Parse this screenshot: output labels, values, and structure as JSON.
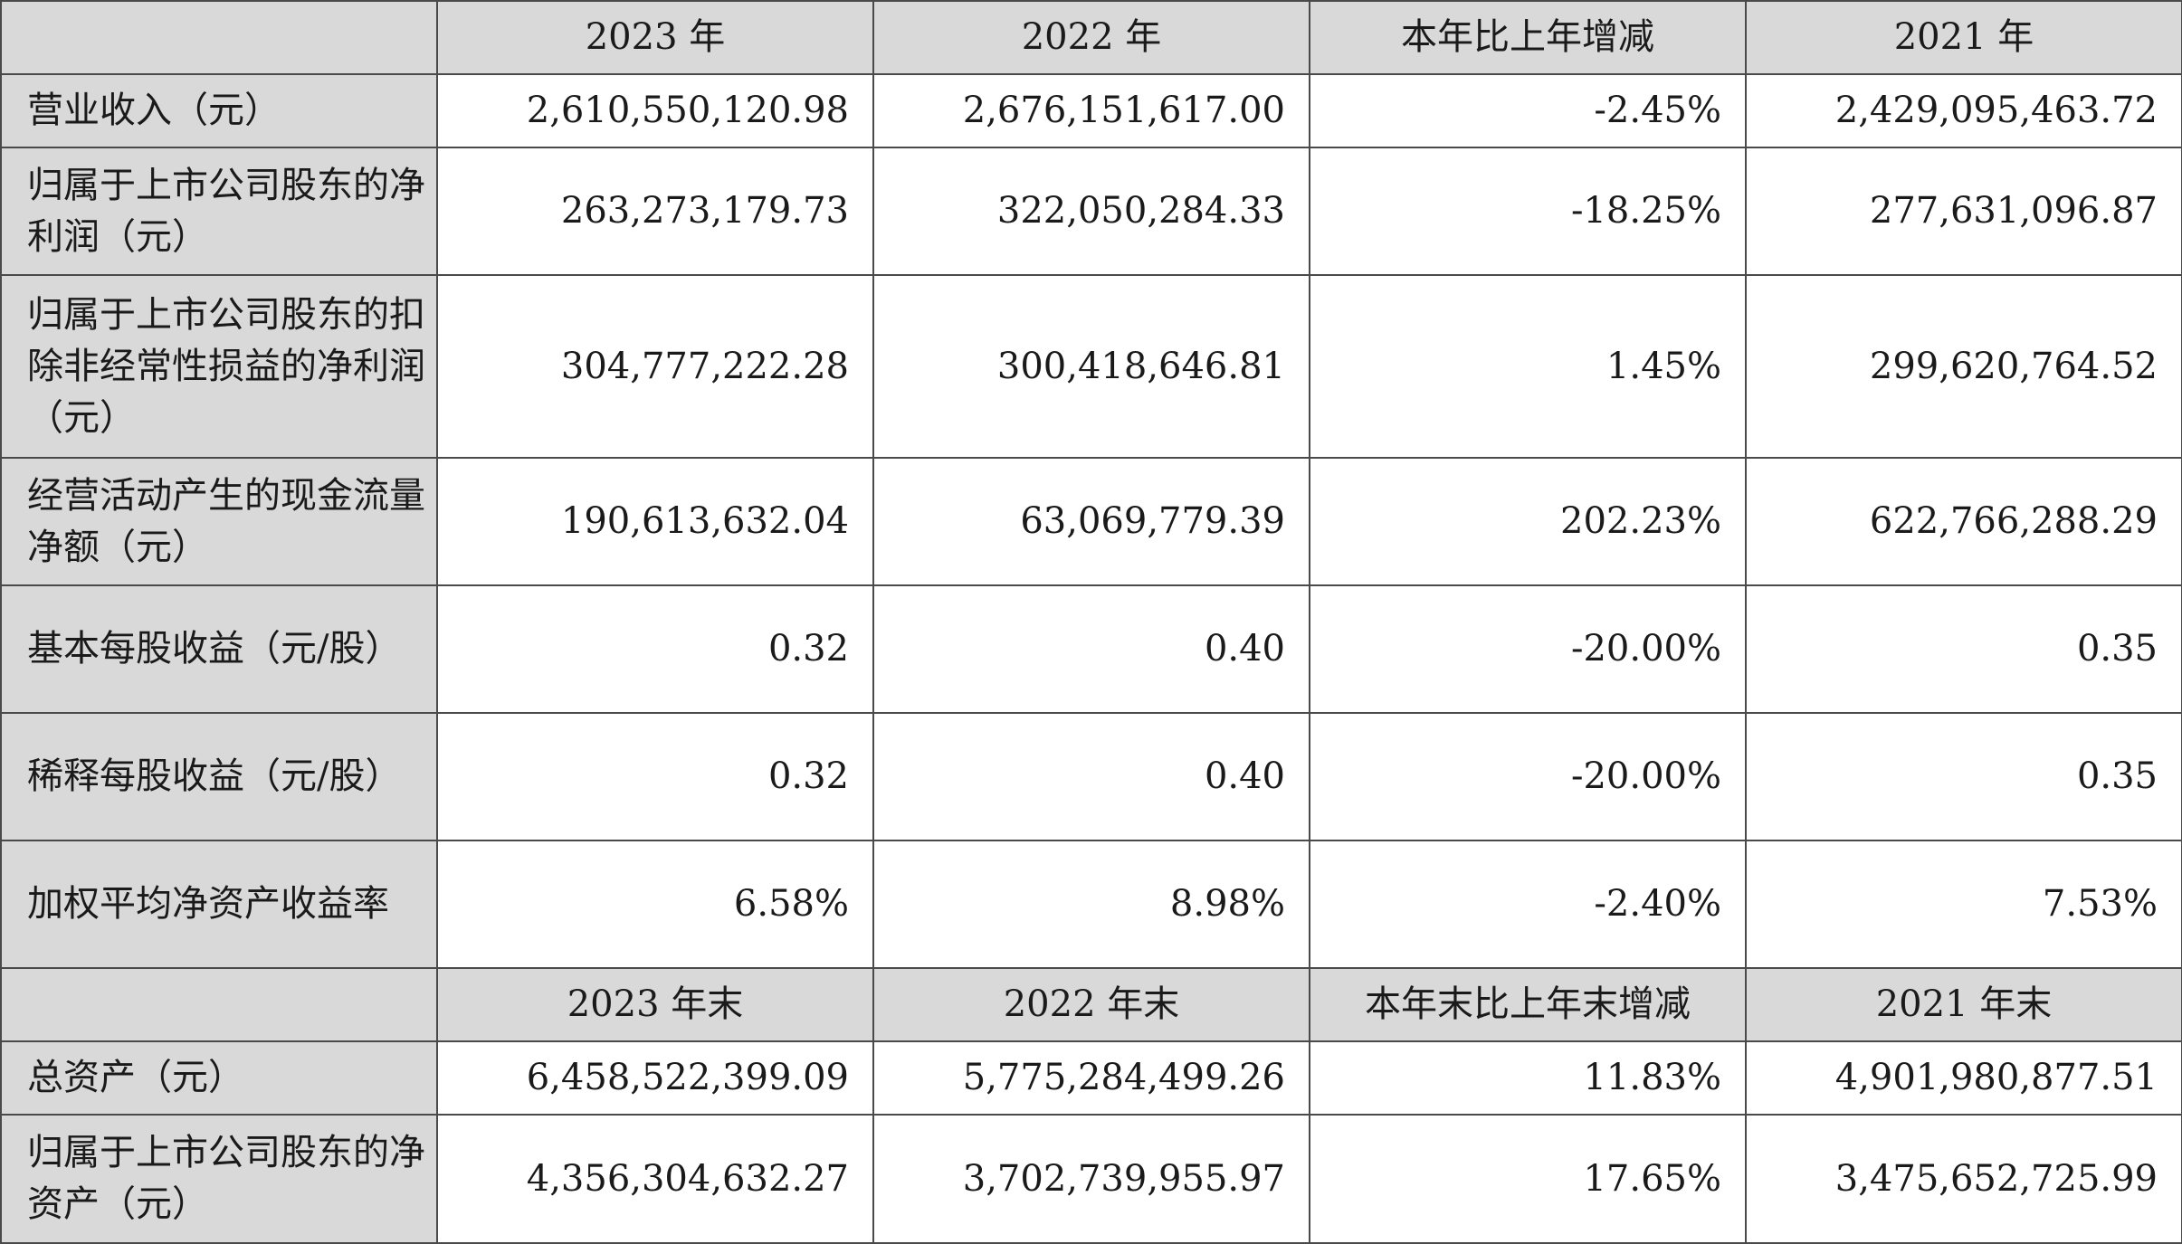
{
  "header_top": {
    "col1": "2023 年",
    "col2": "2022 年",
    "col3": "本年比上年增减",
    "col4": "2021 年"
  },
  "rows_top": [
    {
      "label": "营业收入（元）",
      "v2023": "2,610,550,120.98",
      "v2022": "2,676,151,617.00",
      "change": "-2.45%",
      "v2021": "2,429,095,463.72"
    },
    {
      "label": "归属于上市公司股东的净利润（元）",
      "v2023": "263,273,179.73",
      "v2022": "322,050,284.33",
      "change": "-18.25%",
      "v2021": "277,631,096.87"
    },
    {
      "label": "归属于上市公司股东的扣除非经常性损益的净利润（元）",
      "v2023": "304,777,222.28",
      "v2022": "300,418,646.81",
      "change": "1.45%",
      "v2021": "299,620,764.52"
    },
    {
      "label": "经营活动产生的现金流量净额（元）",
      "v2023": "190,613,632.04",
      "v2022": "63,069,779.39",
      "change": "202.23%",
      "v2021": "622,766,288.29"
    },
    {
      "label": "基本每股收益（元/股）",
      "v2023": "0.32",
      "v2022": "0.40",
      "change": "-20.00%",
      "v2021": "0.35"
    },
    {
      "label": "稀释每股收益（元/股）",
      "v2023": "0.32",
      "v2022": "0.40",
      "change": "-20.00%",
      "v2021": "0.35"
    },
    {
      "label": "加权平均净资产收益率",
      "v2023": "6.58%",
      "v2022": "8.98%",
      "change": "-2.40%",
      "v2021": "7.53%"
    }
  ],
  "header_bottom": {
    "col1": "2023 年末",
    "col2": "2022 年末",
    "col3": "本年末比上年末增减",
    "col4": "2021 年末"
  },
  "rows_bottom": [
    {
      "label": "总资产（元）",
      "v2023": "6,458,522,399.09",
      "v2022": "5,775,284,499.26",
      "change": "11.83%",
      "v2021": "4,901,980,877.51"
    },
    {
      "label": "归属于上市公司股东的净资产（元）",
      "v2023": "4,356,304,632.27",
      "v2022": "3,702,739,955.97",
      "change": "17.65%",
      "v2021": "3,475,652,725.99"
    }
  ]
}
